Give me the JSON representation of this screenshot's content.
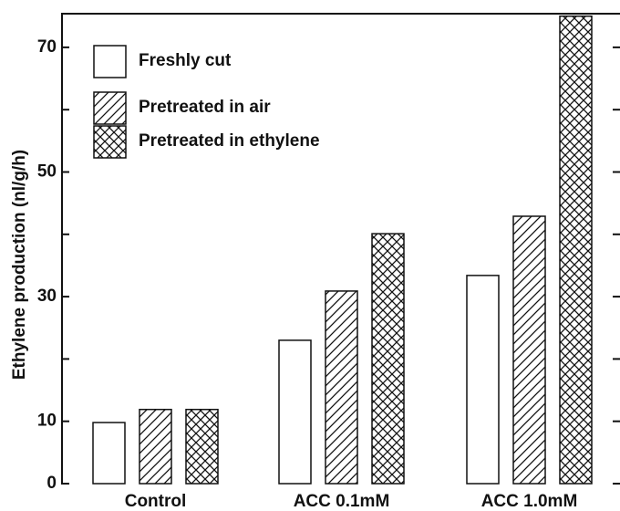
{
  "chart_data": {
    "type": "bar",
    "y_label": "Ethylene production (nl/g/h)",
    "categories": [
      "Control",
      "ACC 0.1mM",
      "ACC 1.0mM"
    ],
    "series": [
      {
        "name": "Freshly cut",
        "color": "#ffffff",
        "hatch": "none",
        "values": [
          9.8,
          23.0,
          33.4
        ]
      },
      {
        "name": "Pretreated in air",
        "color": "#ffffff",
        "hatch": "diagonal",
        "values": [
          11.9,
          30.9,
          42.9
        ]
      },
      {
        "name": "Pretreated in ethylene",
        "color": "#ffffff",
        "hatch": "cross",
        "values": [
          11.9,
          40.1,
          75
        ]
      }
    ],
    "ylim": [
      0,
      75.4
    ],
    "yticks": [
      0,
      10,
      {
        "value": 20
      },
      30,
      {
        "value": 40
      },
      50,
      {
        "value": 60
      },
      70
    ],
    "legend": "upper left"
  }
}
